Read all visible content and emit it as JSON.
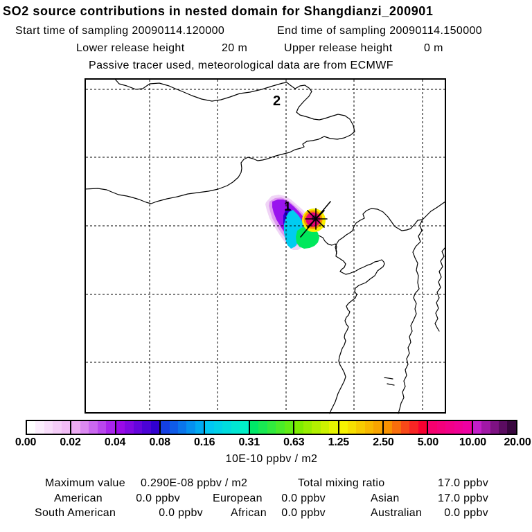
{
  "header": {
    "title": "SO2 source contributions in nested domain for Shangdianzi_200901",
    "start_label": "Start time of sampling 20090114.120000",
    "end_label": "End time of sampling 20090114.150000",
    "lower_release_label": "Lower release height",
    "lower_release_value": "20 m",
    "upper_release_label": "Upper release height",
    "upper_release_value": "0 m",
    "tracer_note": "Passive tracer used, meteorological data are from ECMWF"
  },
  "map": {
    "domain_label": "2",
    "plume_label": "1"
  },
  "colorbar": {
    "unit_label": "10E-10 ppbv / m2",
    "ticks": [
      "0.00",
      "0.02",
      "0.04",
      "0.08",
      "0.16",
      "0.31",
      "0.63",
      "1.25",
      "2.50",
      "5.00",
      "10.00",
      "20.00"
    ],
    "segments": [
      {
        "from": "#FFFFFF",
        "to": "#F2BCF6"
      },
      {
        "from": "#ECAAF2",
        "to": "#A824EC"
      },
      {
        "from": "#9A0AE8",
        "to": "#3000D0"
      },
      {
        "from": "#1440E4",
        "to": "#00AAF2"
      },
      {
        "from": "#00C8F4",
        "to": "#00F0C8"
      },
      {
        "from": "#00E868",
        "to": "#62EC14"
      },
      {
        "from": "#7EEC00",
        "to": "#E6F400"
      },
      {
        "from": "#F6F200",
        "to": "#F8A400"
      },
      {
        "from": "#F89200",
        "to": "#F80030"
      },
      {
        "from": "#F6006E",
        "to": "#EE00A2"
      },
      {
        "from": "#C41EC8",
        "to": "#38063E"
      }
    ]
  },
  "stats": {
    "maximum_label": "Maximum value",
    "maximum_value": "0.290E-08 ppbv / m2",
    "total_label": "Total mixing ratio",
    "total_value": "17.0 ppbv",
    "regions": [
      {
        "name": "American",
        "value": "0.0 ppbv"
      },
      {
        "name": "European",
        "value": "0.0 ppbv"
      },
      {
        "name": "Asian",
        "value": "17.0 ppbv"
      },
      {
        "name": "South American",
        "value": "0.0 ppbv"
      },
      {
        "name": "African",
        "value": "0.0 ppbv"
      },
      {
        "name": "Australian",
        "value": "0.0 ppbv"
      }
    ]
  },
  "chart_data": {
    "type": "heatmap",
    "title": "SO2 source contributions in nested domain for Shangdianzi_200901",
    "sampling_start": "20090114.120000",
    "sampling_end": "20090114.150000",
    "lower_release_height_m": 20,
    "upper_release_height_m": 0,
    "tracer_note": "Passive tracer used, meteorological data are from ECMWF",
    "colorbar_scale": [
      0.0,
      0.02,
      0.04,
      0.08,
      0.16,
      0.31,
      0.63,
      1.25,
      2.5,
      5.0,
      10.0,
      20.0
    ],
    "colorbar_units": "10E-10 ppbv / m2",
    "maximum_value": "0.290E-08 ppbv / m2",
    "total_mixing_ratio_ppbv": 17.0,
    "nested_domain_label": "2",
    "plume_label": "1",
    "region_contributions_ppbv": {
      "American": 0.0,
      "European": 0.0,
      "Asian": 17.0,
      "South American": 0.0,
      "African": 0.0,
      "Australian": 0.0
    },
    "legend_position": "bottom",
    "grid": "dashed"
  }
}
